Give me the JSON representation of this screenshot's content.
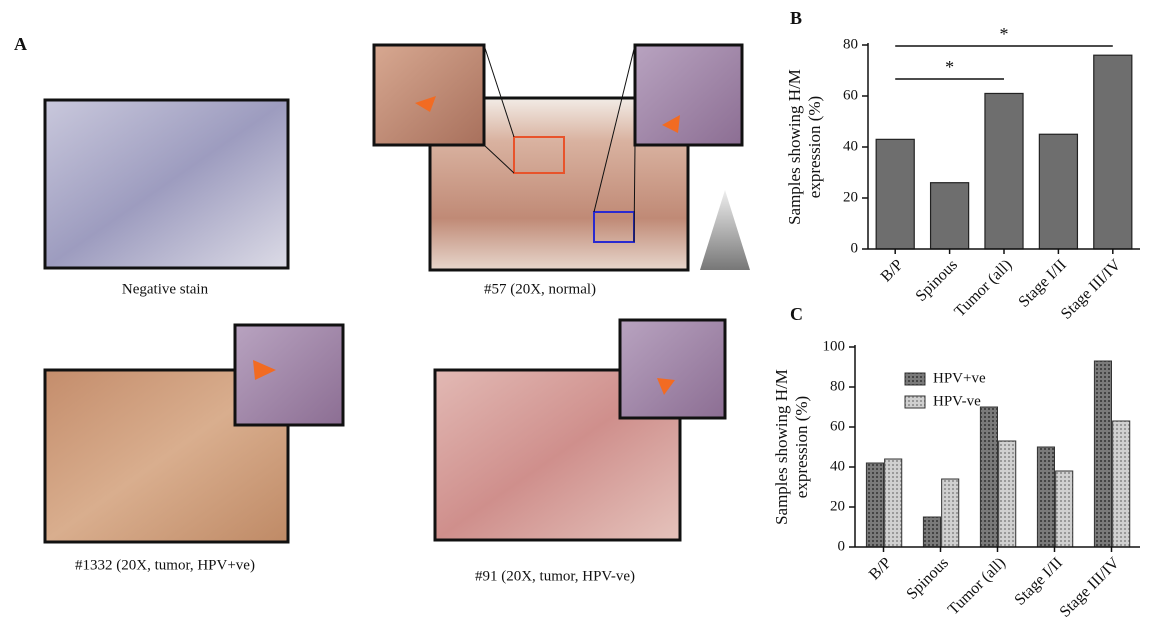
{
  "panel_a": {
    "label": "A",
    "captions": [
      "Negative stain",
      "#57 (20X, normal)",
      "#1332 (20X, tumor, HPV+ve)",
      "#91 (20X, tumor, HPV-ve)"
    ]
  },
  "chart_data": [
    {
      "type": "bar",
      "panel": "B",
      "y_label": [
        "Samples showing H/M",
        "expression (%)"
      ],
      "categories": [
        "B/P",
        "Spinous",
        "Tumor (all)",
        "Stage I/II",
        "Stage III/IV"
      ],
      "values": [
        43,
        26,
        61,
        45,
        76
      ],
      "color": "#6e6e6e",
      "ylim": [
        0,
        80
      ],
      "yticks": [
        0,
        20,
        40,
        60,
        80
      ],
      "annotations": [
        {
          "text": "*",
          "from": 0,
          "to": 4
        },
        {
          "text": "*",
          "from": 0,
          "to": 2
        }
      ]
    },
    {
      "type": "bar",
      "panel": "C",
      "y_label": [
        "Samples showing H/M",
        "expression (%)"
      ],
      "categories": [
        "B/P",
        "Spinous",
        "Tumor (all)",
        "Stage I/II",
        "Stage III/IV"
      ],
      "series": [
        {
          "name": "HPV+ve",
          "color": "#7a7a7a",
          "values": [
            42,
            15,
            70,
            50,
            93
          ]
        },
        {
          "name": "HPV-ve",
          "color": "#d0d0d0",
          "values": [
            44,
            34,
            53,
            38,
            63
          ]
        }
      ],
      "ylim": [
        0,
        100
      ],
      "yticks": [
        0,
        20,
        40,
        60,
        80,
        100
      ]
    }
  ]
}
